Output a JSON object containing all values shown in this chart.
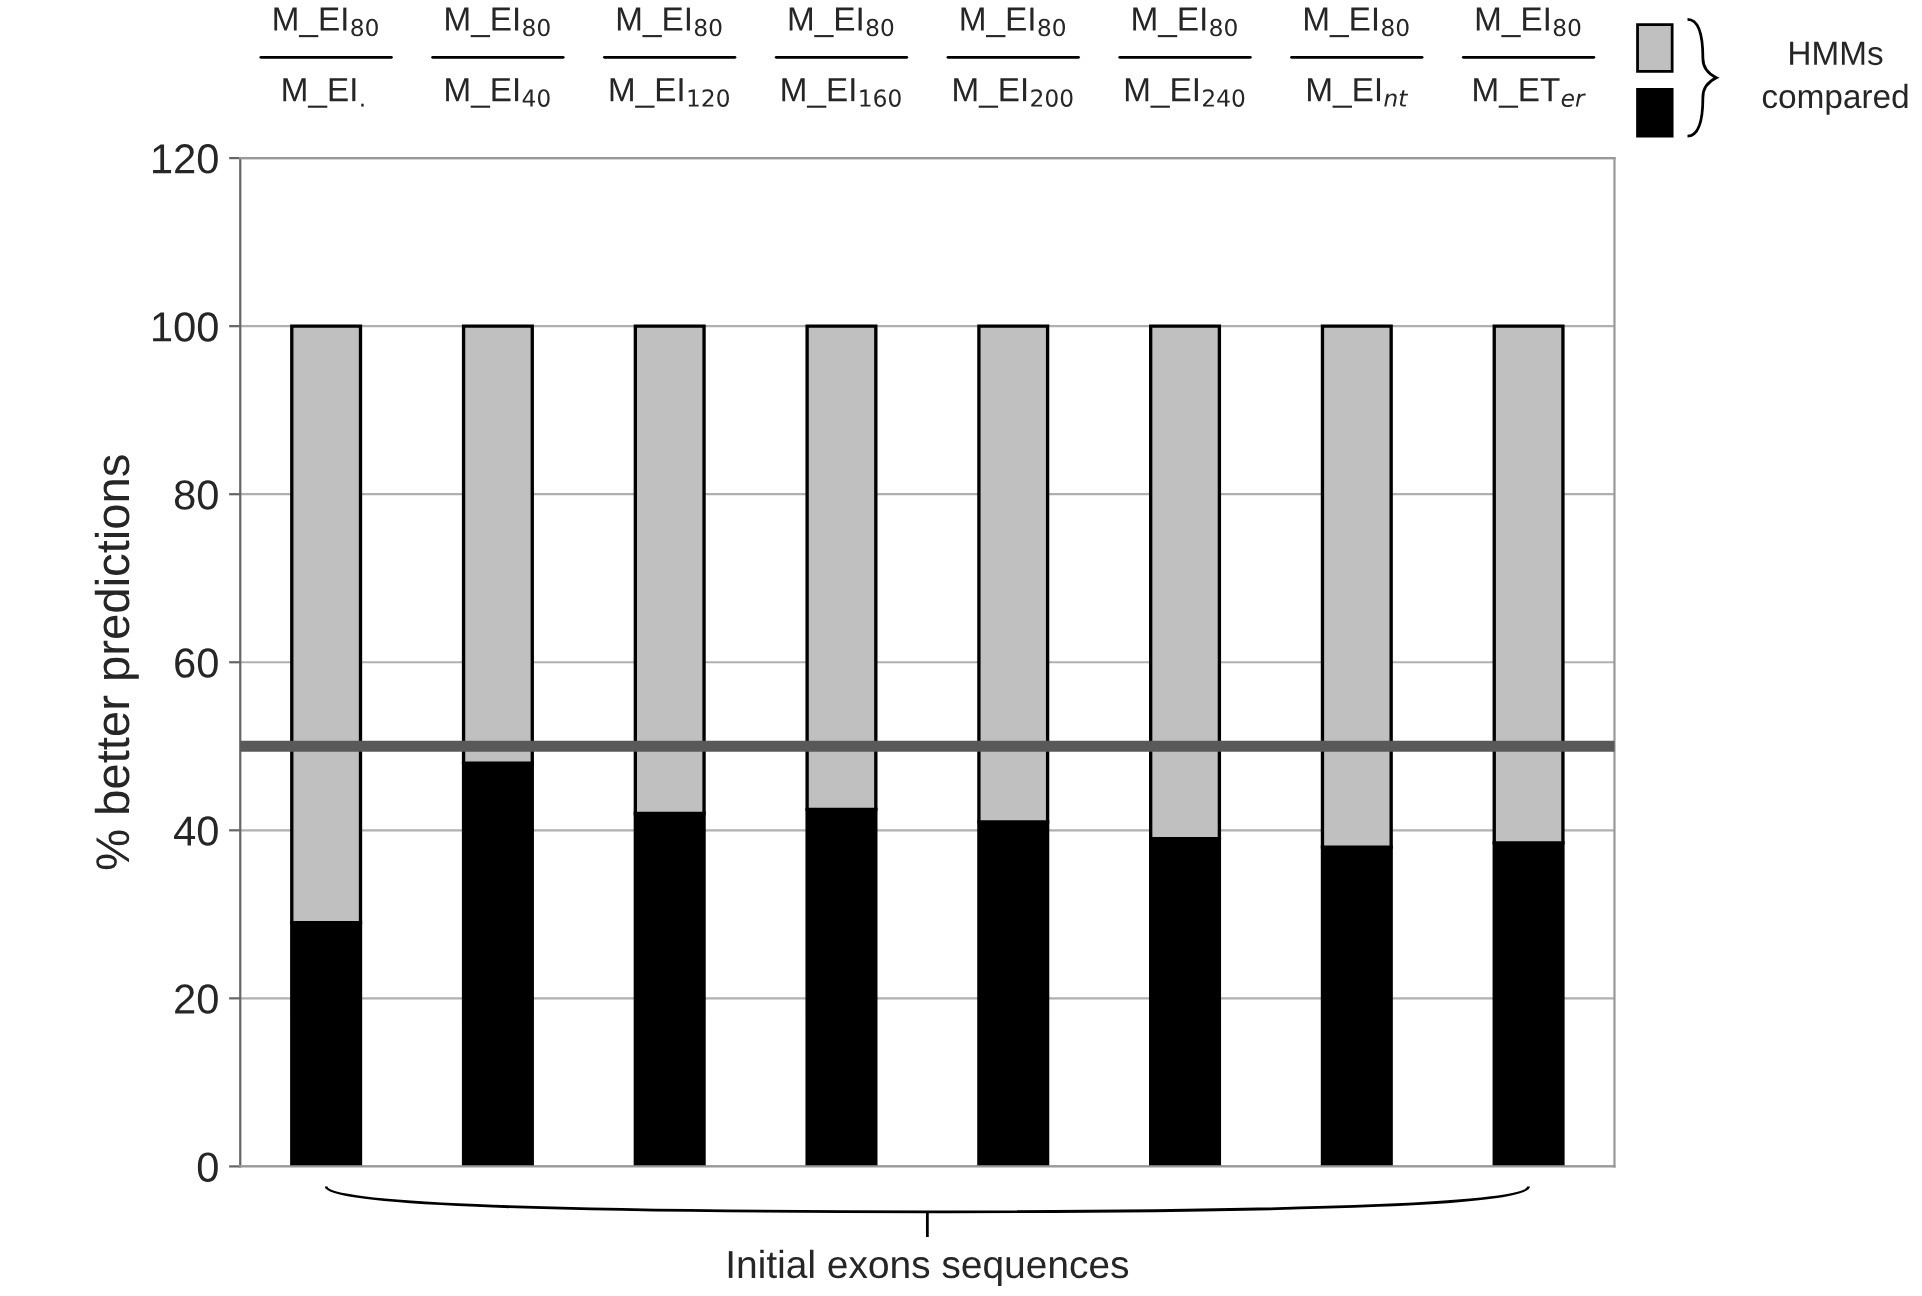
{
  "chart_data": {
    "type": "bar",
    "stacked": true,
    "categories": [
      "M_EI$_{80}$\nM_EI$_{.}$",
      "M_EI$_{80}$\nM_EI$_{40}$",
      "M_EI$_{80}$\nM_EI$_{120}$",
      "M_EI$_{80}$\nM_EI$_{160}$",
      "M_EI$_{80}$\nM_EI$_{200}$",
      "M_EI$_{80}$\nM_EI$_{240}$",
      "M_EI$_{80}$\nM_EI$_{nt}$",
      "M_EI$_{80}$\nM_ET$_{er}$"
    ],
    "series": [
      {
        "color": "#000000",
        "values": [
          29,
          48,
          42,
          42.5,
          41,
          39,
          38,
          38.5
        ]
      },
      {
        "color": "#c0c0c0",
        "values": [
          71,
          52,
          58,
          57.5,
          59,
          61,
          62,
          61.5
        ]
      }
    ],
    "xlabel": "Initial exons sequences",
    "ylabel": "% better predictions",
    "annotations": [
      "HMMs\ncompared"
    ],
    "ylim": [
      0,
      120
    ],
    "yticks": [
      0,
      20,
      40,
      60,
      80,
      100,
      120
    ],
    "grid": "y",
    "ref_lines": [
      {
        "axis": "y",
        "value": 50,
        "color": "#595959"
      }
    ]
  }
}
